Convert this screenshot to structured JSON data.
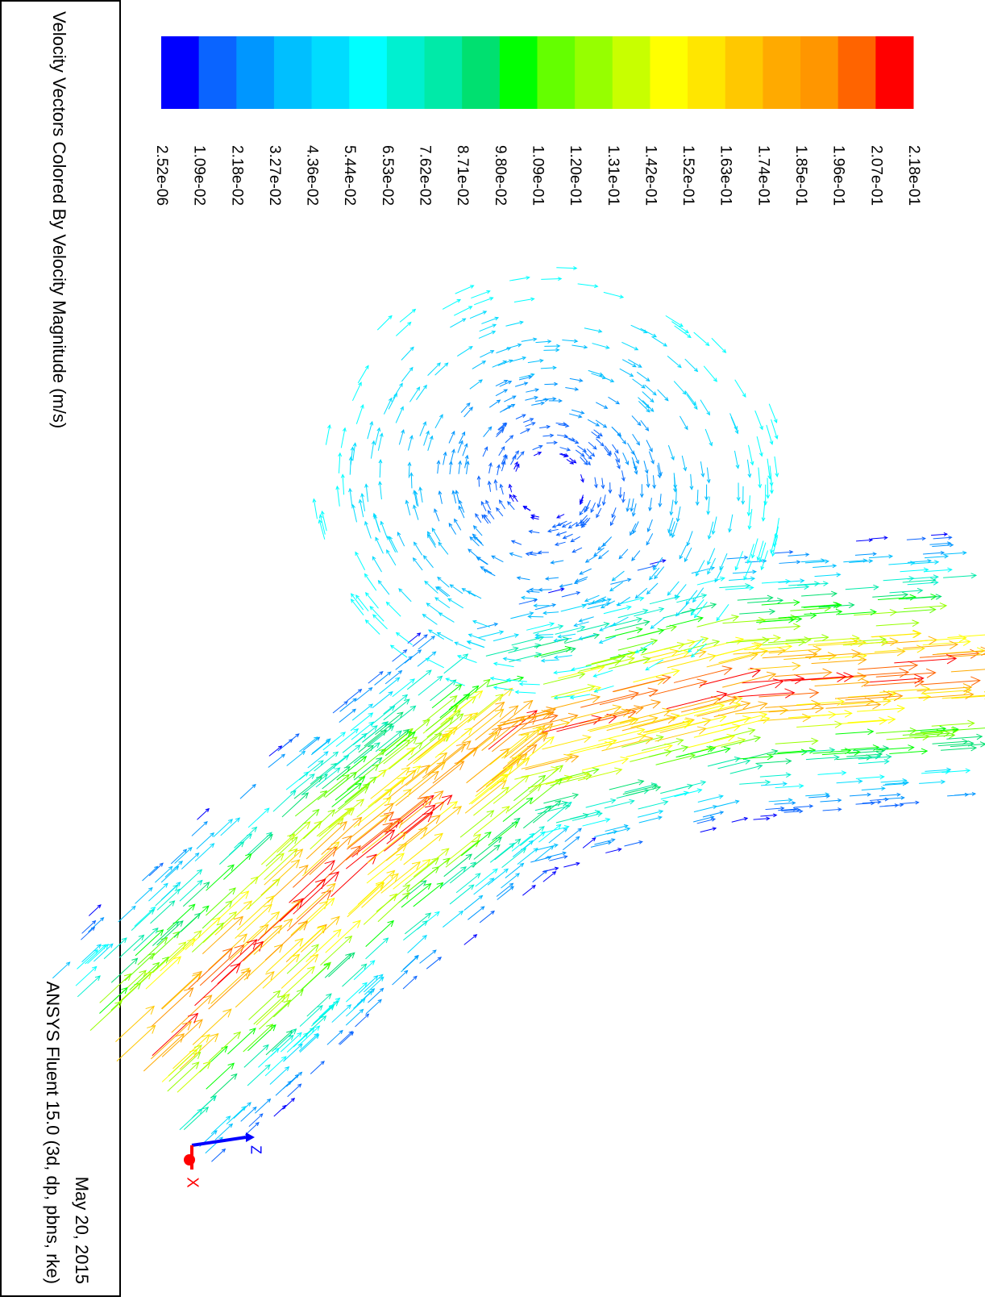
{
  "title": "Velocity Vectors Colored By Velocity Magnitude (m/s)",
  "footer": "ANSYS Fluent 15.0 (3d, dp, pbns, rke)",
  "date": "May 20, 2015",
  "colorbar": {
    "colors": [
      "#0000ff",
      "#0a64ff",
      "#0096ff",
      "#00bfff",
      "#00dcff",
      "#00ffff",
      "#00f0d0",
      "#00eaa8",
      "#00e070",
      "#00ff00",
      "#64ff00",
      "#96ff00",
      "#c8ff00",
      "#ffff00",
      "#ffe600",
      "#ffc800",
      "#ffaa00",
      "#ff9600",
      "#ff6400",
      "#ff0000"
    ],
    "labels": [
      "2.52e-06",
      "1.09e-02",
      "2.18e-02",
      "3.27e-02",
      "4.36e-02",
      "5.44e-02",
      "6.53e-02",
      "7.62e-02",
      "8.71e-02",
      "9.80e-02",
      "1.09e-01",
      "1.20e-01",
      "1.31e-01",
      "1.42e-01",
      "1.52e-01",
      "1.63e-01",
      "1.74e-01",
      "1.85e-01",
      "1.96e-01",
      "2.07e-01",
      "2.18e-01"
    ]
  },
  "axes": {
    "z": "Z",
    "x": "X"
  }
}
